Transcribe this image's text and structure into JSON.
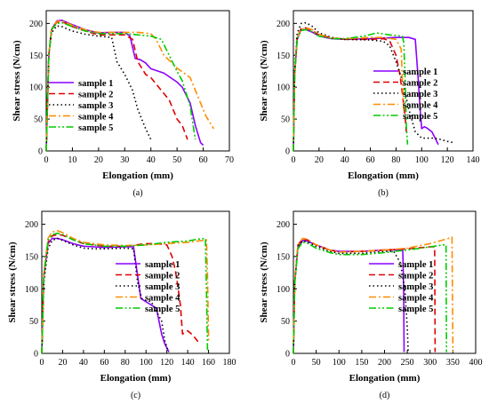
{
  "chart_data": [
    {
      "type": "line",
      "panel_label": "(a)",
      "xlabel": "Elongation (mm)",
      "ylabel": "Shear stress (N/cm)",
      "xlim": [
        0,
        70
      ],
      "ylim": [
        0,
        220
      ],
      "xticks": [
        0,
        10,
        20,
        30,
        40,
        50,
        60,
        70
      ],
      "yticks": [
        0,
        50,
        100,
        150,
        200
      ],
      "legend_position": "lower-left",
      "series": [
        {
          "name": "sample 1",
          "color": "#8B00FF",
          "dash": "solid",
          "x": [
            0,
            1,
            2,
            4,
            6,
            10,
            15,
            20,
            25,
            30,
            32,
            34,
            36,
            38,
            40,
            45,
            50,
            52,
            55,
            57,
            59,
            60
          ],
          "y": [
            0,
            150,
            190,
            204,
            205,
            198,
            190,
            185,
            186,
            186,
            180,
            145,
            143,
            138,
            129,
            122,
            108,
            100,
            75,
            40,
            13,
            9
          ]
        },
        {
          "name": "sample 2",
          "color": "#E00000",
          "dash": "dashed",
          "x": [
            0,
            1,
            2,
            4,
            6,
            10,
            15,
            20,
            25,
            30,
            33,
            35,
            38,
            40,
            45,
            47,
            50,
            52,
            54
          ],
          "y": [
            0,
            150,
            190,
            202,
            203,
            195,
            188,
            182,
            182,
            182,
            175,
            140,
            120,
            115,
            90,
            80,
            50,
            40,
            18
          ]
        },
        {
          "name": "sample 3",
          "color": "#000000",
          "dash": "dotted",
          "x": [
            0,
            1,
            2,
            4,
            6,
            10,
            15,
            20,
            25,
            27,
            30,
            33,
            35,
            38,
            40
          ],
          "y": [
            0,
            150,
            185,
            196,
            195,
            188,
            183,
            180,
            178,
            140,
            120,
            95,
            65,
            35,
            18
          ]
        },
        {
          "name": "sample 4",
          "color": "#FF8C00",
          "dash": "dashdot",
          "x": [
            0,
            1,
            2,
            4,
            6,
            10,
            15,
            20,
            25,
            30,
            35,
            40,
            42,
            45,
            50,
            55,
            58,
            61,
            64
          ],
          "y": [
            0,
            150,
            192,
            203,
            204,
            197,
            190,
            186,
            186,
            186,
            186,
            184,
            175,
            150,
            130,
            115,
            85,
            55,
            35
          ]
        },
        {
          "name": "sample 5",
          "color": "#00CC00",
          "dash": "dashdotdot",
          "x": [
            0,
            1,
            2,
            4,
            6,
            10,
            15,
            20,
            25,
            30,
            35,
            40,
            44,
            47,
            50,
            52,
            55,
            57
          ],
          "y": [
            0,
            150,
            190,
            200,
            201,
            195,
            188,
            184,
            184,
            184,
            182,
            180,
            175,
            150,
            125,
            110,
            70,
            18
          ]
        }
      ]
    },
    {
      "type": "line",
      "panel_label": "(b)",
      "xlabel": "Elongation (mm)",
      "ylabel": "Shear stress (N/cm)",
      "xlim": [
        0,
        140
      ],
      "ylim": [
        0,
        220
      ],
      "xticks": [
        0,
        20,
        40,
        60,
        80,
        100,
        120,
        140
      ],
      "yticks": [
        0,
        50,
        100,
        150,
        200
      ],
      "legend_position": "right",
      "series": [
        {
          "name": "sample 1",
          "color": "#8B00FF",
          "dash": "solid",
          "x": [
            0,
            1,
            3,
            6,
            10,
            15,
            20,
            30,
            40,
            60,
            80,
            90,
            95,
            97,
            99,
            100,
            102,
            104,
            108,
            111,
            113
          ],
          "y": [
            0,
            120,
            175,
            190,
            190,
            186,
            180,
            176,
            175,
            176,
            178,
            178,
            175,
            120,
            60,
            35,
            38,
            36,
            30,
            18,
            10
          ]
        },
        {
          "name": "sample 2",
          "color": "#E00000",
          "dash": "dashed",
          "x": [
            0,
            1,
            3,
            6,
            10,
            15,
            20,
            30,
            40,
            60,
            70,
            75,
            80,
            83,
            85,
            87,
            88
          ],
          "y": [
            0,
            120,
            178,
            192,
            193,
            188,
            182,
            177,
            175,
            175,
            176,
            173,
            150,
            120,
            90,
            55,
            30
          ]
        },
        {
          "name": "sample 3",
          "color": "#000000",
          "dash": "dotted",
          "x": [
            0,
            1,
            3,
            6,
            10,
            15,
            20,
            30,
            40,
            60,
            70,
            75,
            80,
            85,
            90,
            95,
            100,
            105,
            110,
            115,
            120,
            125
          ],
          "y": [
            0,
            125,
            185,
            200,
            201,
            195,
            185,
            178,
            175,
            174,
            172,
            165,
            140,
            110,
            65,
            30,
            20,
            20,
            20,
            18,
            15,
            13
          ]
        },
        {
          "name": "sample 4",
          "color": "#FF8C00",
          "dash": "dashdot",
          "x": [
            0,
            1,
            3,
            6,
            10,
            15,
            20,
            30,
            40,
            60,
            70,
            80,
            84,
            86
          ],
          "y": [
            0,
            120,
            177,
            190,
            193,
            190,
            183,
            177,
            176,
            178,
            178,
            175,
            160,
            60
          ]
        },
        {
          "name": "sample 5",
          "color": "#00CC00",
          "dash": "dashdotdot",
          "x": [
            0,
            1,
            3,
            6,
            10,
            15,
            20,
            30,
            40,
            55,
            65,
            75,
            85,
            86,
            87,
            88,
            89
          ],
          "y": [
            0,
            120,
            176,
            189,
            190,
            187,
            180,
            176,
            176,
            180,
            185,
            182,
            180,
            170,
            120,
            40,
            10
          ]
        }
      ]
    },
    {
      "type": "line",
      "panel_label": "(c)",
      "xlabel": "Elongation (mm)",
      "ylabel": "Shear stress (N/cm)",
      "xlim": [
        0,
        180
      ],
      "ylim": [
        0,
        220
      ],
      "xticks": [
        0,
        20,
        40,
        60,
        80,
        100,
        120,
        140,
        160,
        180
      ],
      "yticks": [
        0,
        50,
        100,
        150,
        200
      ],
      "legend_position": "lower-right",
      "series": [
        {
          "name": "sample 1",
          "color": "#8B00FF",
          "dash": "solid",
          "x": [
            0,
            2,
            6,
            10,
            15,
            20,
            30,
            40,
            50,
            60,
            80,
            88,
            92,
            95,
            100,
            105,
            110,
            115,
            118,
            122
          ],
          "y": [
            0,
            120,
            170,
            178,
            178,
            176,
            170,
            166,
            165,
            164,
            165,
            165,
            120,
            85,
            80,
            75,
            70,
            30,
            15,
            2
          ]
        },
        {
          "name": "sample 2",
          "color": "#E00000",
          "dash": "dashed",
          "x": [
            0,
            2,
            6,
            10,
            15,
            20,
            30,
            40,
            60,
            80,
            100,
            110,
            120,
            125,
            128,
            130,
            133,
            135,
            140,
            145,
            150
          ],
          "y": [
            0,
            120,
            172,
            182,
            184,
            183,
            176,
            170,
            166,
            166,
            170,
            170,
            168,
            150,
            130,
            110,
            75,
            30,
            35,
            28,
            18
          ]
        },
        {
          "name": "sample 3",
          "color": "#000000",
          "dash": "dotted",
          "x": [
            0,
            2,
            6,
            10,
            15,
            20,
            30,
            40,
            50,
            60,
            80,
            88,
            92,
            96,
            100,
            105,
            110,
            115,
            118,
            121
          ],
          "y": [
            0,
            110,
            162,
            175,
            178,
            175,
            168,
            163,
            162,
            162,
            163,
            162,
            110,
            85,
            82,
            80,
            65,
            50,
            20,
            5
          ]
        },
        {
          "name": "sample 4",
          "color": "#FF8C00",
          "dash": "dashdot",
          "x": [
            0,
            2,
            6,
            10,
            15,
            20,
            30,
            40,
            60,
            80,
            100,
            120,
            140,
            155,
            158,
            159,
            160
          ],
          "y": [
            0,
            125,
            178,
            188,
            190,
            187,
            178,
            172,
            168,
            167,
            168,
            170,
            172,
            175,
            176,
            120,
            20
          ]
        },
        {
          "name": "sample 5",
          "color": "#00CC00",
          "dash": "dashdotdot",
          "x": [
            0,
            2,
            6,
            10,
            15,
            20,
            30,
            40,
            60,
            80,
            100,
            120,
            140,
            150,
            157,
            158,
            159
          ],
          "y": [
            0,
            120,
            175,
            184,
            186,
            184,
            176,
            170,
            166,
            166,
            168,
            172,
            174,
            177,
            178,
            100,
            5
          ]
        }
      ]
    },
    {
      "type": "line",
      "panel_label": "(d)",
      "xlabel": "Elongation (mm)",
      "ylabel": "Shear stress (N/cm)",
      "xlim": [
        0,
        400
      ],
      "ylim": [
        0,
        220
      ],
      "xticks": [
        0,
        50,
        100,
        150,
        200,
        250,
        300,
        350,
        400
      ],
      "yticks": [
        0,
        50,
        100,
        150,
        200
      ],
      "legend_position": "lower-right",
      "series": [
        {
          "name": "sample 1",
          "color": "#8B00FF",
          "dash": "solid",
          "x": [
            0,
            3,
            10,
            20,
            30,
            50,
            80,
            100,
            150,
            200,
            230,
            240,
            242,
            243
          ],
          "y": [
            0,
            110,
            165,
            175,
            174,
            168,
            160,
            158,
            158,
            160,
            160,
            160,
            100,
            2
          ]
        },
        {
          "name": "sample 2",
          "color": "#E00000",
          "dash": "dashed",
          "x": [
            0,
            3,
            10,
            20,
            30,
            50,
            80,
            100,
            150,
            200,
            250,
            300,
            310,
            311
          ],
          "y": [
            0,
            110,
            168,
            177,
            176,
            168,
            160,
            157,
            158,
            160,
            162,
            165,
            165,
            2
          ]
        },
        {
          "name": "sample 3",
          "color": "#000000",
          "dash": "dotted",
          "x": [
            0,
            3,
            10,
            20,
            30,
            50,
            80,
            100,
            150,
            200,
            220,
            235,
            245,
            250,
            252
          ],
          "y": [
            0,
            110,
            165,
            174,
            173,
            166,
            158,
            155,
            155,
            158,
            158,
            140,
            95,
            40,
            2
          ]
        },
        {
          "name": "sample 4",
          "color": "#FF8C00",
          "dash": "dashdot",
          "x": [
            0,
            3,
            10,
            20,
            30,
            50,
            80,
            100,
            150,
            200,
            250,
            300,
            340,
            348,
            350
          ],
          "y": [
            0,
            110,
            168,
            178,
            177,
            168,
            160,
            157,
            158,
            160,
            163,
            170,
            178,
            180,
            2
          ]
        },
        {
          "name": "sample 5",
          "color": "#00CC00",
          "dash": "dashdotdot",
          "x": [
            0,
            3,
            10,
            20,
            30,
            50,
            80,
            100,
            150,
            200,
            250,
            300,
            330,
            335,
            336
          ],
          "y": [
            0,
            108,
            162,
            172,
            171,
            163,
            156,
            153,
            153,
            156,
            160,
            165,
            168,
            168,
            2
          ]
        }
      ]
    }
  ]
}
